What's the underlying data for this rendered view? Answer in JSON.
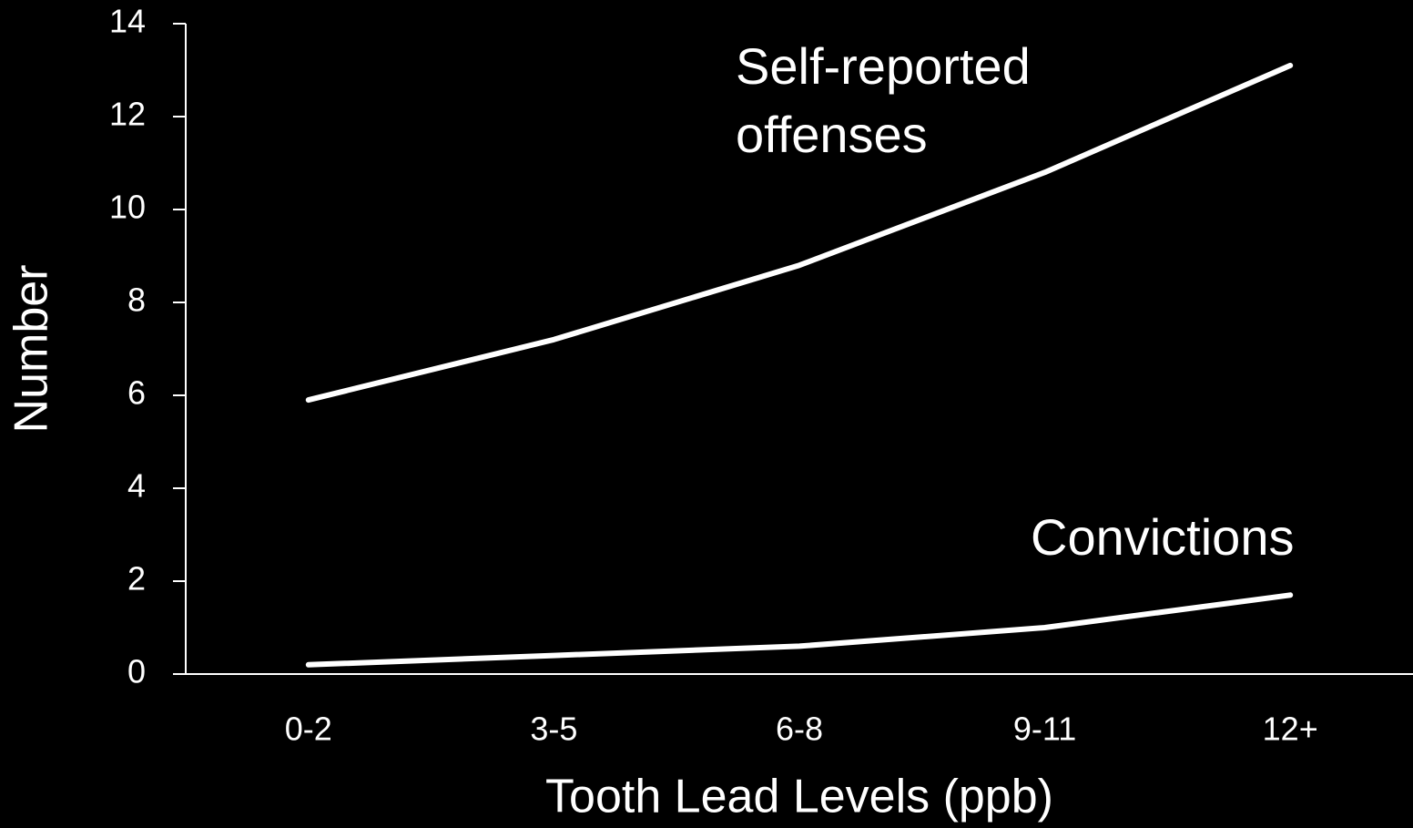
{
  "chart_data": {
    "type": "line",
    "x_label": "Tooth Lead Levels (ppb)",
    "y_label": "Number",
    "categories": [
      "0-2",
      "3-5",
      "6-8",
      "9-11",
      "12+"
    ],
    "series": [
      {
        "name": "Self-reported offenses",
        "color": "#ffffff",
        "values": [
          5.9,
          7.2,
          8.8,
          10.8,
          13.1
        ]
      },
      {
        "name": "Convictions",
        "color": "#ffffff",
        "values": [
          0.2,
          0.4,
          0.6,
          1.0,
          1.7
        ]
      }
    ],
    "ylim": [
      0,
      14
    ],
    "yticks": [
      0,
      2,
      4,
      6,
      8,
      10,
      12,
      14
    ],
    "grid": false
  }
}
